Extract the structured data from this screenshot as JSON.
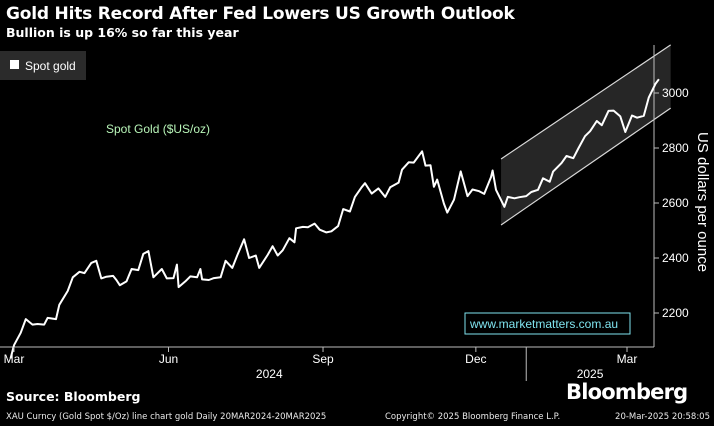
{
  "header": {
    "title": "Gold Hits Record After Fed Lowers US Growth Outlook",
    "subtitle": "Bullion is up 16% so far this year"
  },
  "legend": {
    "label": "Spot gold"
  },
  "annotation": {
    "series_label": "Spot Gold ($US/oz)",
    "watermark": "www.marketmatters.com.au"
  },
  "footer": {
    "source": "Source: Bloomberg",
    "brand": "Bloomberg",
    "query": "XAU Curncy (Gold Spot  $/Oz) line chart gold  Daily 20MAR2024-20MAR2025",
    "copyright": "Copyright© 2025 Bloomberg Finance L.P.",
    "timestamp": "20-Mar-2025 20:58:05"
  },
  "colors": {
    "background": "#000000",
    "line": "#ffffff",
    "series_label": "#b8f5b8",
    "watermark": "#7fe3ef",
    "channel_fill": "#2a2a2a"
  },
  "chart_data": {
    "type": "line",
    "title": "Gold Hits Record After Fed Lowers US Growth Outlook",
    "subtitle": "Bullion is up 16% so far this year",
    "ylabel": "US dollars per ounce",
    "xlabel": "",
    "ylim": [
      2130,
      3140
    ],
    "yticks": [
      2200,
      2400,
      2600,
      2800,
      3000
    ],
    "xlim": [
      "2024-03-01",
      "2025-03-28"
    ],
    "xticks": [
      {
        "date": "2024-03-01",
        "label": "Mar"
      },
      {
        "date": "2024-06-01",
        "label": "Jun"
      },
      {
        "date": "2024-09-01",
        "label": "Sep"
      },
      {
        "date": "2024-12-01",
        "label": "Dec"
      },
      {
        "date": "2025-03-01",
        "label": "Mar"
      }
    ],
    "year_labels": [
      {
        "label": "2024",
        "center": "2024-07-31"
      },
      {
        "label": "2025",
        "center": "2025-02-07"
      }
    ],
    "year_divider": "2024-12-31",
    "legend": "top-left",
    "series": [
      {
        "name": "Spot gold",
        "points": [
          [
            "2024-02-28",
            2035
          ],
          [
            "2024-03-01",
            2083
          ],
          [
            "2024-03-05",
            2128
          ],
          [
            "2024-03-08",
            2178
          ],
          [
            "2024-03-12",
            2158
          ],
          [
            "2024-03-15",
            2160
          ],
          [
            "2024-03-19",
            2158
          ],
          [
            "2024-03-21",
            2182
          ],
          [
            "2024-03-26",
            2178
          ],
          [
            "2024-03-28",
            2230
          ],
          [
            "2024-04-02",
            2280
          ],
          [
            "2024-04-05",
            2330
          ],
          [
            "2024-04-09",
            2350
          ],
          [
            "2024-04-12",
            2345
          ],
          [
            "2024-04-16",
            2382
          ],
          [
            "2024-04-19",
            2390
          ],
          [
            "2024-04-22",
            2326
          ],
          [
            "2024-04-25",
            2332
          ],
          [
            "2024-04-29",
            2335
          ],
          [
            "2024-05-01",
            2320
          ],
          [
            "2024-05-03",
            2301
          ],
          [
            "2024-05-07",
            2315
          ],
          [
            "2024-05-10",
            2360
          ],
          [
            "2024-05-14",
            2356
          ],
          [
            "2024-05-17",
            2415
          ],
          [
            "2024-05-20",
            2425
          ],
          [
            "2024-05-23",
            2330
          ],
          [
            "2024-05-28",
            2360
          ],
          [
            "2024-05-31",
            2326
          ],
          [
            "2024-06-04",
            2327
          ],
          [
            "2024-06-06",
            2376
          ],
          [
            "2024-06-07",
            2294
          ],
          [
            "2024-06-11",
            2315
          ],
          [
            "2024-06-14",
            2333
          ],
          [
            "2024-06-18",
            2330
          ],
          [
            "2024-06-20",
            2360
          ],
          [
            "2024-06-21",
            2322
          ],
          [
            "2024-06-25",
            2320
          ],
          [
            "2024-06-28",
            2327
          ],
          [
            "2024-07-02",
            2330
          ],
          [
            "2024-07-05",
            2390
          ],
          [
            "2024-07-09",
            2364
          ],
          [
            "2024-07-12",
            2411
          ],
          [
            "2024-07-16",
            2468
          ],
          [
            "2024-07-19",
            2400
          ],
          [
            "2024-07-23",
            2409
          ],
          [
            "2024-07-25",
            2364
          ],
          [
            "2024-07-30",
            2411
          ],
          [
            "2024-08-02",
            2443
          ],
          [
            "2024-08-05",
            2409
          ],
          [
            "2024-08-08",
            2428
          ],
          [
            "2024-08-12",
            2472
          ],
          [
            "2024-08-15",
            2457
          ],
          [
            "2024-08-16",
            2508
          ],
          [
            "2024-08-20",
            2513
          ],
          [
            "2024-08-23",
            2512
          ],
          [
            "2024-08-27",
            2525
          ],
          [
            "2024-08-30",
            2503
          ],
          [
            "2024-09-03",
            2493
          ],
          [
            "2024-09-06",
            2497
          ],
          [
            "2024-09-10",
            2516
          ],
          [
            "2024-09-13",
            2578
          ],
          [
            "2024-09-17",
            2569
          ],
          [
            "2024-09-20",
            2622
          ],
          [
            "2024-09-24",
            2657
          ],
          [
            "2024-09-26",
            2672
          ],
          [
            "2024-09-30",
            2634
          ],
          [
            "2024-10-04",
            2653
          ],
          [
            "2024-10-08",
            2622
          ],
          [
            "2024-10-11",
            2657
          ],
          [
            "2024-10-16",
            2674
          ],
          [
            "2024-10-18",
            2721
          ],
          [
            "2024-10-22",
            2748
          ],
          [
            "2024-10-25",
            2747
          ],
          [
            "2024-10-30",
            2788
          ],
          [
            "2024-11-01",
            2736
          ],
          [
            "2024-11-04",
            2737
          ],
          [
            "2024-11-06",
            2659
          ],
          [
            "2024-11-08",
            2685
          ],
          [
            "2024-11-12",
            2598
          ],
          [
            "2024-11-14",
            2565
          ],
          [
            "2024-11-18",
            2612
          ],
          [
            "2024-11-22",
            2715
          ],
          [
            "2024-11-26",
            2625
          ],
          [
            "2024-11-29",
            2649
          ],
          [
            "2024-12-03",
            2643
          ],
          [
            "2024-12-06",
            2633
          ],
          [
            "2024-12-10",
            2694
          ],
          [
            "2024-12-11",
            2718
          ],
          [
            "2024-12-13",
            2648
          ],
          [
            "2024-12-18",
            2586
          ],
          [
            "2024-12-20",
            2622
          ],
          [
            "2024-12-24",
            2617
          ],
          [
            "2024-12-27",
            2621
          ],
          [
            "2024-12-31",
            2625
          ],
          [
            "2025-01-03",
            2640
          ],
          [
            "2025-01-07",
            2648
          ],
          [
            "2025-01-10",
            2690
          ],
          [
            "2025-01-14",
            2677
          ],
          [
            "2025-01-16",
            2714
          ],
          [
            "2025-01-21",
            2745
          ],
          [
            "2025-01-24",
            2771
          ],
          [
            "2025-01-28",
            2763
          ],
          [
            "2025-01-31",
            2798
          ],
          [
            "2025-02-04",
            2843
          ],
          [
            "2025-02-07",
            2861
          ],
          [
            "2025-02-11",
            2898
          ],
          [
            "2025-02-14",
            2883
          ],
          [
            "2025-02-18",
            2935
          ],
          [
            "2025-02-21",
            2936
          ],
          [
            "2025-02-25",
            2915
          ],
          [
            "2025-02-28",
            2858
          ],
          [
            "2025-03-04",
            2918
          ],
          [
            "2025-03-07",
            2910
          ],
          [
            "2025-03-11",
            2917
          ],
          [
            "2025-03-14",
            2984
          ],
          [
            "2025-03-18",
            3034
          ],
          [
            "2025-03-20",
            3050
          ]
        ]
      }
    ],
    "channel": {
      "start": "2024-12-16",
      "end": "2025-03-27",
      "upper": [
        2760,
        3175
      ],
      "lower": [
        2520,
        2945
      ]
    }
  }
}
